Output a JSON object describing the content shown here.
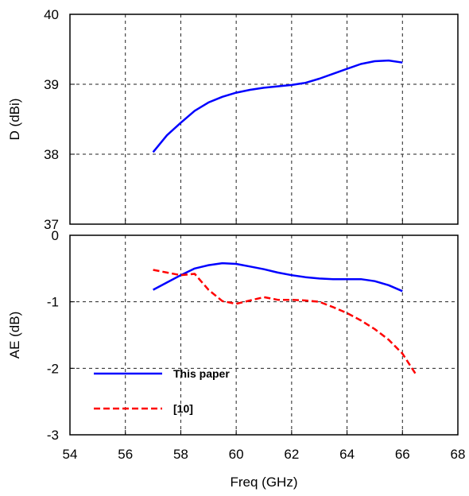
{
  "chart_data": [
    {
      "type": "line",
      "ylabel": "D (dBi)",
      "xlim": [
        54,
        68
      ],
      "ylim": [
        37,
        40
      ],
      "x_ticks": [
        "54",
        "56",
        "58",
        "60",
        "62",
        "64",
        "66",
        "68"
      ],
      "y_ticks": [
        "37",
        "38",
        "39",
        "40"
      ],
      "grid": true,
      "series": [
        {
          "name": "",
          "color": "#0000ff",
          "style": "solid",
          "x": [
            57.0,
            57.5,
            58.0,
            58.5,
            59.0,
            59.5,
            60.0,
            60.5,
            61.0,
            61.5,
            62.0,
            62.5,
            63.0,
            63.5,
            64.0,
            64.5,
            65.0,
            65.5,
            66.0
          ],
          "y": [
            38.03,
            38.27,
            38.45,
            38.62,
            38.74,
            38.82,
            38.88,
            38.92,
            38.95,
            38.97,
            38.99,
            39.02,
            39.08,
            39.15,
            39.22,
            39.29,
            39.33,
            39.34,
            39.31
          ]
        }
      ]
    },
    {
      "type": "line",
      "xlabel": "Freq (GHz)",
      "ylabel": "AE (dB)",
      "xlim": [
        54,
        68
      ],
      "ylim": [
        -3,
        0
      ],
      "x_ticks": [
        "54",
        "56",
        "58",
        "60",
        "62",
        "64",
        "66",
        "68"
      ],
      "y_ticks": [
        "-3",
        "-2",
        "-1",
        "0"
      ],
      "grid": true,
      "legend": "lower-left",
      "series": [
        {
          "name": "This paper",
          "color": "#0000ff",
          "style": "solid",
          "x": [
            57.0,
            57.5,
            58.0,
            58.5,
            59.0,
            59.5,
            60.0,
            60.5,
            61.0,
            61.5,
            62.0,
            62.5,
            63.0,
            63.5,
            64.0,
            64.5,
            65.0,
            65.5,
            66.0
          ],
          "y": [
            -0.82,
            -0.71,
            -0.6,
            -0.5,
            -0.45,
            -0.42,
            -0.43,
            -0.47,
            -0.51,
            -0.56,
            -0.6,
            -0.63,
            -0.65,
            -0.66,
            -0.66,
            -0.66,
            -0.69,
            -0.75,
            -0.84
          ]
        },
        {
          "name": "[10]",
          "color": "#ff0000",
          "style": "dashed",
          "x": [
            57.0,
            57.5,
            58.0,
            58.5,
            59.0,
            59.5,
            60.0,
            60.5,
            61.0,
            61.5,
            62.0,
            62.5,
            63.0,
            63.5,
            64.0,
            64.5,
            65.0,
            65.5,
            66.0,
            66.5
          ],
          "y": [
            -0.52,
            -0.56,
            -0.6,
            -0.58,
            -0.82,
            -0.99,
            -1.03,
            -0.98,
            -0.93,
            -0.97,
            -0.97,
            -0.98,
            -1.0,
            -1.08,
            -1.17,
            -1.28,
            -1.41,
            -1.57,
            -1.78,
            -2.1
          ]
        }
      ]
    }
  ]
}
